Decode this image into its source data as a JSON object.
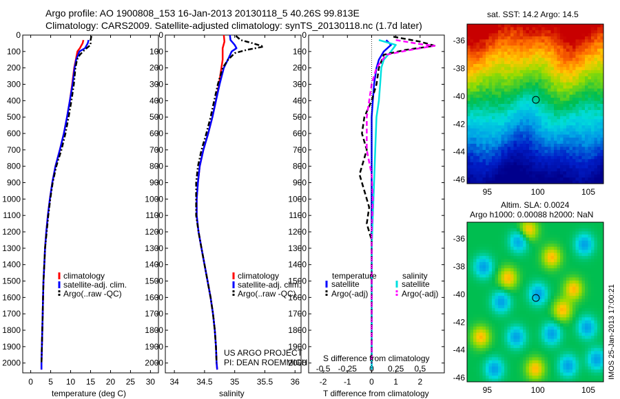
{
  "header": {
    "title_line1": "Argo profile: AO 1900808_153 16-Jan-2013 20130118_5 40.26S 99.813E",
    "title_line2": "Climatology: CARS2009. Satellite-adjusted climatology: synTS_20130118.nc (1.7d later)"
  },
  "colors": {
    "climatology": "#ff0000",
    "satellite": "#0000ff",
    "argo": "#000000",
    "satellite_salinity": "#00e0e0",
    "argo_salinity": "#ff00ff"
  },
  "chart_data": [
    {
      "type": "line",
      "id": "temperature",
      "xlabel": "temperature (deg C)",
      "xlim": [
        -2,
        32
      ],
      "ylim": [
        2060,
        0
      ],
      "xticks": [
        0,
        5,
        10,
        15,
        20,
        25,
        30
      ],
      "yticks": [
        0,
        100,
        200,
        300,
        400,
        500,
        600,
        700,
        800,
        900,
        1000,
        1100,
        1200,
        1300,
        1400,
        1500,
        1600,
        1700,
        1800,
        1900,
        2000
      ],
      "legend": [
        "climatology",
        "satellite-adj. clim.",
        "Argo(..raw -QC)"
      ],
      "series": [
        {
          "name": "climatology",
          "style": "solid",
          "color": "#ff0000",
          "points": [
            [
              13.2,
              30
            ],
            [
              13.0,
              50
            ],
            [
              12.3,
              80
            ],
            [
              11.7,
              100
            ],
            [
              11.3,
              150
            ],
            [
              10.9,
              200
            ],
            [
              10.4,
              300
            ],
            [
              9.8,
              400
            ],
            [
              9.1,
              500
            ],
            [
              8.3,
              600
            ],
            [
              7.3,
              700
            ],
            [
              6.2,
              800
            ],
            [
              5.4,
              900
            ],
            [
              4.8,
              1000
            ],
            [
              4.3,
              1100
            ],
            [
              3.9,
              1200
            ],
            [
              3.6,
              1300
            ],
            [
              3.4,
              1400
            ],
            [
              3.2,
              1500
            ],
            [
              3.1,
              1600
            ],
            [
              3.0,
              1700
            ],
            [
              2.9,
              1800
            ],
            [
              2.8,
              1900
            ],
            [
              2.7,
              2000
            ],
            [
              2.7,
              2040
            ]
          ]
        },
        {
          "name": "satellite-adj. clim.",
          "style": "solid",
          "color": "#0000ff",
          "points": [
            [
              14.5,
              30
            ],
            [
              14.3,
              50
            ],
            [
              13.6,
              80
            ],
            [
              12.2,
              100
            ],
            [
              11.4,
              150
            ],
            [
              11.0,
              200
            ],
            [
              10.5,
              300
            ],
            [
              9.8,
              400
            ],
            [
              9.1,
              500
            ],
            [
              8.3,
              600
            ],
            [
              7.3,
              700
            ],
            [
              6.2,
              800
            ],
            [
              5.4,
              900
            ],
            [
              4.8,
              1000
            ],
            [
              4.3,
              1100
            ],
            [
              3.9,
              1200
            ],
            [
              3.6,
              1300
            ],
            [
              3.4,
              1400
            ],
            [
              3.2,
              1500
            ],
            [
              3.1,
              1600
            ],
            [
              3.0,
              1700
            ],
            [
              2.9,
              1800
            ],
            [
              2.8,
              1900
            ],
            [
              2.7,
              2000
            ],
            [
              2.7,
              2040
            ]
          ]
        },
        {
          "name": "Argo(..raw -QC)",
          "style": "dashdot",
          "color": "#000000",
          "points": [
            [
              15.2,
              5
            ],
            [
              15.0,
              30
            ],
            [
              15.0,
              60
            ],
            [
              13.5,
              90
            ],
            [
              12.3,
              120
            ],
            [
              11.6,
              150
            ],
            [
              11.2,
              200
            ],
            [
              10.8,
              300
            ],
            [
              10.2,
              400
            ],
            [
              9.5,
              500
            ],
            [
              8.7,
              600
            ],
            [
              7.7,
              700
            ],
            [
              6.4,
              800
            ],
            [
              5.5,
              900
            ],
            [
              4.9,
              1000
            ],
            [
              4.4,
              1100
            ],
            [
              4.0,
              1200
            ],
            [
              3.6,
              1300
            ],
            [
              3.4,
              1400
            ],
            [
              3.2,
              1500
            ],
            [
              3.1,
              1600
            ],
            [
              3.0,
              1700
            ],
            [
              2.9,
              1800
            ],
            [
              2.8,
              1900
            ],
            [
              2.7,
              2000
            ]
          ]
        }
      ]
    },
    {
      "type": "line",
      "id": "salinity",
      "xlabel": "salinity",
      "xlim": [
        33.85,
        36.1
      ],
      "ylim": [
        2060,
        0
      ],
      "xticks": [
        34,
        34.5,
        35,
        35.5,
        36
      ],
      "xticklabels": [
        "34",
        "34.5",
        "35",
        "35.5",
        "36"
      ],
      "legend": [
        "climatology",
        "satellite-adj. clim.",
        "Argo(..raw -QC)"
      ],
      "annotation_line1": "US ARGO PROJECT",
      "annotation_line2": "PI: DEAN ROEMMICH",
      "series": [
        {
          "name": "climatology",
          "style": "solid",
          "color": "#ff0000",
          "points": [
            [
              34.82,
              0
            ],
            [
              34.83,
              40
            ],
            [
              34.8,
              80
            ],
            [
              34.8,
              100
            ],
            [
              34.8,
              150
            ],
            [
              34.78,
              200
            ],
            [
              34.74,
              300
            ],
            [
              34.69,
              400
            ],
            [
              34.63,
              500
            ],
            [
              34.56,
              600
            ],
            [
              34.48,
              700
            ],
            [
              34.42,
              800
            ],
            [
              34.39,
              900
            ],
            [
              34.37,
              1000
            ],
            [
              34.37,
              1100
            ],
            [
              34.4,
              1200
            ],
            [
              34.45,
              1300
            ],
            [
              34.5,
              1400
            ],
            [
              34.55,
              1500
            ],
            [
              34.6,
              1600
            ],
            [
              34.64,
              1700
            ],
            [
              34.67,
              1800
            ],
            [
              34.69,
              1900
            ],
            [
              34.7,
              2000
            ],
            [
              34.71,
              2040
            ]
          ]
        },
        {
          "name": "satellite-adj. clim.",
          "style": "solid",
          "color": "#0000ff",
          "points": [
            [
              34.92,
              0
            ],
            [
              34.93,
              30
            ],
            [
              35.0,
              60
            ],
            [
              35.03,
              80
            ],
            [
              34.95,
              100
            ],
            [
              34.9,
              140
            ],
            [
              34.82,
              200
            ],
            [
              34.75,
              300
            ],
            [
              34.69,
              400
            ],
            [
              34.63,
              500
            ],
            [
              34.56,
              600
            ],
            [
              34.48,
              700
            ],
            [
              34.42,
              800
            ],
            [
              34.39,
              900
            ],
            [
              34.37,
              1000
            ],
            [
              34.37,
              1100
            ],
            [
              34.4,
              1200
            ],
            [
              34.45,
              1300
            ],
            [
              34.5,
              1400
            ],
            [
              34.55,
              1500
            ],
            [
              34.6,
              1600
            ],
            [
              34.64,
              1700
            ],
            [
              34.67,
              1800
            ],
            [
              34.69,
              1900
            ],
            [
              34.7,
              2000
            ],
            [
              34.71,
              2040
            ]
          ]
        },
        {
          "name": "Argo(..raw -QC)",
          "style": "dashdot",
          "color": "#000000",
          "points": [
            [
              35.02,
              5
            ],
            [
              35.1,
              30
            ],
            [
              35.3,
              50
            ],
            [
              35.48,
              70
            ],
            [
              35.2,
              90
            ],
            [
              35.0,
              110
            ],
            [
              34.89,
              150
            ],
            [
              34.8,
              200
            ],
            [
              34.72,
              300
            ],
            [
              34.66,
              400
            ],
            [
              34.6,
              500
            ],
            [
              34.53,
              600
            ],
            [
              34.45,
              700
            ],
            [
              34.39,
              800
            ],
            [
              34.36,
              900
            ],
            [
              34.36,
              1000
            ],
            [
              34.36,
              1100
            ],
            [
              34.4,
              1200
            ],
            [
              34.45,
              1300
            ],
            [
              34.5,
              1400
            ],
            [
              34.55,
              1500
            ],
            [
              34.6,
              1600
            ],
            [
              34.64,
              1700
            ],
            [
              34.67,
              1800
            ],
            [
              34.69,
              1900
            ],
            [
              34.7,
              2000
            ]
          ]
        }
      ]
    },
    {
      "type": "line",
      "id": "difference",
      "xlabel": "T difference from climatology",
      "xlabel_top": "S difference from climatology",
      "xlim": [
        -2.6,
        3.0
      ],
      "salinity_xlim": [
        -0.65,
        0.75
      ],
      "ylim": [
        2060,
        0
      ],
      "xticks": [
        -2,
        -1,
        0,
        1,
        2
      ],
      "xticks_top": [
        -0.5,
        -0.25,
        0,
        0.25,
        0.5
      ],
      "xticklabels_top": [
        "-0.5",
        "-0.25",
        "0",
        "0.25",
        "0.5"
      ],
      "legend_temperature_title": "temperature",
      "legend_salinity_title": "salinity",
      "legend": [
        "satellite",
        "Argo(-adj)"
      ],
      "series": [
        {
          "name": "satellite",
          "group": "temperature",
          "style": "solid",
          "color": "#0000ff",
          "points": [
            [
              0.6,
              30
            ],
            [
              0.8,
              60
            ],
            [
              0.5,
              100
            ],
            [
              0.3,
              150
            ],
            [
              0.2,
              200
            ],
            [
              0.1,
              300
            ],
            [
              0.05,
              400
            ],
            [
              0.0,
              500
            ],
            [
              0.0,
              1000
            ],
            [
              0.0,
              2040
            ]
          ]
        },
        {
          "name": "satellite",
          "group": "salinity",
          "style": "solid",
          "color": "#00e0e0",
          "points": [
            [
              0.3,
              30
            ],
            [
              1.0,
              60
            ],
            [
              0.8,
              100
            ],
            [
              0.5,
              150
            ],
            [
              0.4,
              200
            ],
            [
              0.35,
              300
            ],
            [
              0.3,
              400
            ],
            [
              0.2,
              500
            ],
            [
              0.15,
              700
            ],
            [
              0.1,
              900
            ],
            [
              0.05,
              1100
            ],
            [
              0.0,
              1300
            ],
            [
              0.0,
              2040
            ]
          ]
        },
        {
          "name": "Argo(-adj)",
          "group": "temperature",
          "style": "dashed",
          "color": "#000000",
          "points": [
            [
              0.9,
              10
            ],
            [
              2.0,
              40
            ],
            [
              2.6,
              65
            ],
            [
              1.4,
              90
            ],
            [
              0.5,
              120
            ],
            [
              0.3,
              200
            ],
            [
              0.2,
              300
            ],
            [
              0.0,
              400
            ],
            [
              -0.3,
              500
            ],
            [
              -0.4,
              600
            ],
            [
              -0.2,
              700
            ],
            [
              -0.5,
              850
            ],
            [
              -0.3,
              950
            ],
            [
              -0.1,
              1050
            ],
            [
              -0.2,
              1150
            ],
            [
              0.0,
              1250
            ],
            [
              0.0,
              2000
            ]
          ]
        },
        {
          "name": "Argo(-adj)",
          "group": "salinity",
          "style": "dashed",
          "color": "#ff00ff",
          "points": [
            [
              1.0,
              30
            ],
            [
              2.0,
              55
            ],
            [
              2.6,
              65
            ],
            [
              1.6,
              90
            ],
            [
              0.6,
              120
            ],
            [
              0.2,
              200
            ],
            [
              0.0,
              300
            ],
            [
              -0.1,
              400
            ],
            [
              -0.2,
              500
            ],
            [
              -0.2,
              700
            ],
            [
              0.0,
              850
            ],
            [
              0.05,
              1000
            ],
            [
              0.0,
              1200
            ],
            [
              0.0,
              2000
            ]
          ]
        }
      ]
    },
    {
      "type": "heatmap",
      "id": "sst-map",
      "title": "sat. SST: 14.2  Argo: 14.5",
      "xlim": [
        93,
        106.5
      ],
      "ylim": [
        -46.3,
        -34.8
      ],
      "xticks": [
        95,
        100,
        105
      ],
      "yticks": [
        -36,
        -38,
        -40,
        -42,
        -44,
        -46
      ],
      "marker": [
        99.813,
        -40.26
      ]
    },
    {
      "type": "heatmap",
      "id": "sla-map",
      "title_line1": "Altim. SLA: 0.0024",
      "title_line2": "Argo h1000: 0.00088  h2000: NaN",
      "xlim": [
        93,
        106.5
      ],
      "ylim": [
        -46.3,
        -34.8
      ],
      "xticks": [
        95,
        100,
        105
      ],
      "yticks": [
        -36,
        -38,
        -40,
        -42,
        -44,
        -46
      ],
      "marker": [
        99.813,
        -40.26
      ]
    }
  ],
  "footer": {
    "side_stamp": "IMOS 25-Jan-2013 17:00:21"
  }
}
